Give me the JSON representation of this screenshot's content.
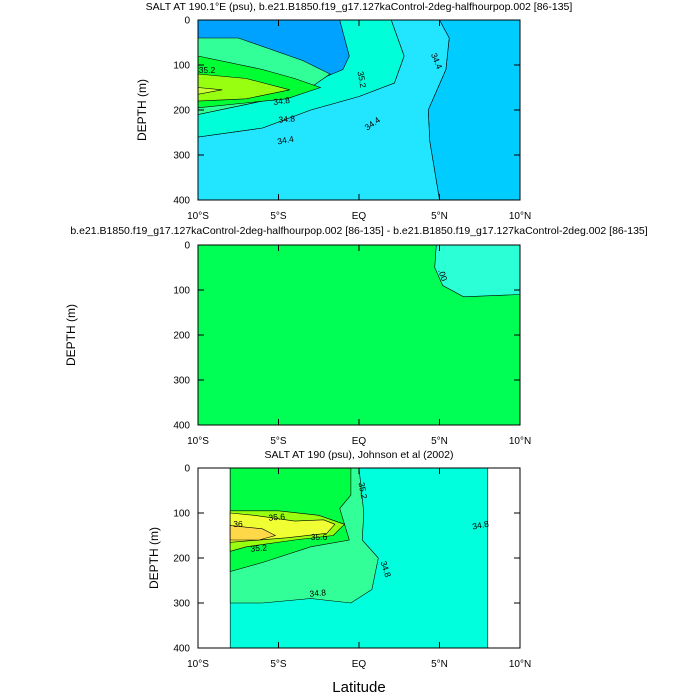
{
  "chart_data": [
    {
      "type": "contour",
      "title": "SALT AT 190.1°E (psu), b.e21.B1850.f19_g17.127kaControl-2deg-halfhourpop.002 [86-135]",
      "xlabel": "",
      "ylabel": "DEPTH (m)",
      "xlim": [
        -10,
        10
      ],
      "ylim": [
        400,
        0
      ],
      "x_ticks": [
        "10°S",
        "5°S",
        "EQ",
        "5°N",
        "10°N"
      ],
      "y_ticks": [
        "0",
        "100",
        "200",
        "300",
        "400"
      ],
      "contour_labels": [
        "35.2",
        "34.8",
        "35.2",
        "34.8",
        "34.4",
        "34.4",
        "34.4"
      ],
      "regions": [
        {
          "level": "< 34.2",
          "color": "#00a2ff",
          "path": [
            [
              9.8,
              0
            ],
            [
              9,
              0
            ],
            [
              8,
              5
            ],
            [
              7.5,
              50
            ],
            [
              8.5,
              40
            ],
            [
              10,
              35
            ],
            [
              10,
              0
            ]
          ]
        },
        {
          "level": "34.2-34.4",
          "color": "#00ccff",
          "path": [
            [
              5,
              0
            ],
            [
              5.6,
              40
            ],
            [
              5.4,
              110
            ],
            [
              4.3,
              200
            ],
            [
              4.4,
              270
            ],
            [
              5,
              400
            ],
            [
              10,
              400
            ],
            [
              10,
              0
            ]
          ]
        },
        {
          "level": "34.4-34.6",
          "color": "#22e6ff",
          "path": [
            [
              2,
              0
            ],
            [
              2.8,
              80
            ],
            [
              2.2,
              140
            ],
            [
              0,
              170
            ],
            [
              -3,
              200
            ],
            [
              -6,
              240
            ],
            [
              -10,
              260
            ],
            [
              -10,
              400
            ],
            [
              5,
              400
            ],
            [
              4.4,
              270
            ],
            [
              4.3,
              200
            ],
            [
              5.4,
              110
            ],
            [
              5.6,
              40
            ],
            [
              5,
              0
            ]
          ]
        },
        {
          "level": "34.6-35.0",
          "color": "#00ffd8",
          "path": [
            [
              -1.2,
              0
            ],
            [
              -0.6,
              80
            ],
            [
              -1,
              110
            ],
            [
              -3,
              140
            ],
            [
              -6,
              180
            ],
            [
              -10,
              210
            ],
            [
              -10,
              260
            ],
            [
              -6,
              240
            ],
            [
              -3,
              200
            ],
            [
              0,
              170
            ],
            [
              2.2,
              140
            ],
            [
              2.8,
              80
            ],
            [
              2,
              0
            ]
          ]
        },
        {
          "level": "35.0-35.2",
          "color": "#33ff99",
          "path": [
            [
              -7.5,
              40
            ],
            [
              -3.5,
              90
            ],
            [
              -1.8,
              120
            ],
            [
              -3,
              150
            ],
            [
              -6,
              180
            ],
            [
              -10,
              210
            ],
            [
              -10,
              40
            ]
          ]
        },
        {
          "level": "35.2-35.4",
          "color": "#00ff33",
          "path": [
            [
              -10,
              80
            ],
            [
              -6,
              110
            ],
            [
              -4,
              130
            ],
            [
              -2.4,
              150
            ],
            [
              -4.5,
              175
            ],
            [
              -10,
              195
            ]
          ]
        },
        {
          "level": "35.4-35.6",
          "color": "#99ff11",
          "path": [
            [
              -10,
              120
            ],
            [
              -7,
              130
            ],
            [
              -4.3,
              155
            ],
            [
              -7,
              175
            ],
            [
              -10,
              180
            ]
          ]
        },
        {
          "level": "35.6-35.8",
          "color": "#ccff33",
          "path": [
            [
              -10,
              150
            ],
            [
              -8.5,
              155
            ],
            [
              -10,
              165
            ]
          ]
        }
      ]
    },
    {
      "type": "contour",
      "title": "b.e21.B1850.f19_g17.127kaControl-2deg-halfhourpop.002 [86-135] - b.e21.B1850.f19_g17.127kaControl-2deg.002 [86-135]",
      "xlabel": "",
      "ylabel": "DEPTH (m)",
      "xlim": [
        -10,
        10
      ],
      "ylim": [
        400,
        0
      ],
      "x_ticks": [
        "10°S",
        "5°S",
        "EQ",
        "5°N",
        "10°N"
      ],
      "y_ticks": [
        "0",
        "100",
        "200",
        "300",
        "400"
      ],
      "contour_labels": [
        ".00"
      ],
      "regions": [
        {
          "level": "0",
          "color": "#00ff55",
          "path": [
            [
              -10,
              0
            ],
            [
              10,
              0
            ],
            [
              10,
              400
            ],
            [
              -10,
              400
            ]
          ]
        },
        {
          "level": "> 0",
          "color": "#2bffd5",
          "path": [
            [
              4.8,
              0
            ],
            [
              4.7,
              50
            ],
            [
              5.2,
              90
            ],
            [
              6.5,
              115
            ],
            [
              10,
              110
            ],
            [
              10,
              0
            ]
          ]
        }
      ]
    },
    {
      "type": "contour",
      "title": "SALT AT 190 (psu), Johnson et al (2002)",
      "xlabel": "Latitude",
      "ylabel": "DEPTH (m)",
      "xlim": [
        -10,
        10
      ],
      "ylim": [
        400,
        0
      ],
      "data_extent": [
        -8,
        8
      ],
      "x_ticks": [
        "10°S",
        "5°S",
        "EQ",
        "5°N",
        "10°N"
      ],
      "y_ticks": [
        "0",
        "100",
        "200",
        "300",
        "400"
      ],
      "contour_labels": [
        "35.2",
        "35.6",
        "36",
        "35.6",
        "35.2",
        "34.8",
        "34.8",
        "34.8"
      ],
      "regions": [
        {
          "level": "34.6-35.0",
          "color": "#00ffdd",
          "path": [
            [
              -8,
              0
            ],
            [
              8,
              0
            ],
            [
              8,
              400
            ],
            [
              -8,
              400
            ]
          ]
        },
        {
          "level": "35.0-35.2",
          "color": "#33ff99",
          "path": [
            [
              -8,
              0
            ],
            [
              0,
              0
            ],
            [
              0.3,
              100
            ],
            [
              0.2,
              160
            ],
            [
              1.2,
              200
            ],
            [
              0.8,
              270
            ],
            [
              -0.5,
              300
            ],
            [
              -3,
              290
            ],
            [
              -6,
              300
            ],
            [
              -8,
              300
            ]
          ]
        },
        {
          "level": "35.2-35.4",
          "color": "#00ff44",
          "path": [
            [
              -8,
              0
            ],
            [
              -0.5,
              0
            ],
            [
              -0.5,
              60
            ],
            [
              -1.2,
              90
            ],
            [
              -0.6,
              160
            ],
            [
              -3,
              175
            ],
            [
              -6,
              210
            ],
            [
              -8,
              230
            ]
          ]
        },
        {
          "level": "35.4-35.6",
          "color": "#99ff11",
          "path": [
            [
              -8,
              95
            ],
            [
              -5,
              95
            ],
            [
              -2.5,
              105
            ],
            [
              -0.9,
              125
            ],
            [
              -1.6,
              150
            ],
            [
              -4,
              160
            ],
            [
              -7,
              175
            ],
            [
              -8,
              185
            ]
          ]
        },
        {
          "level": "35.6-35.8",
          "color": "#f0ff33",
          "path": [
            [
              -8,
              100
            ],
            [
              -6.5,
              105
            ],
            [
              -4,
              118
            ],
            [
              -2.2,
              115
            ],
            [
              -1.5,
              125
            ],
            [
              -2,
              145
            ],
            [
              -4.5,
              155
            ],
            [
              -8,
              165
            ]
          ]
        },
        {
          "level": "> 36.0",
          "color": "#ffd84a",
          "path": [
            [
              -8,
              128
            ],
            [
              -6,
              135
            ],
            [
              -5.2,
              150
            ],
            [
              -6.2,
              160
            ],
            [
              -8,
              160
            ]
          ]
        }
      ]
    }
  ]
}
